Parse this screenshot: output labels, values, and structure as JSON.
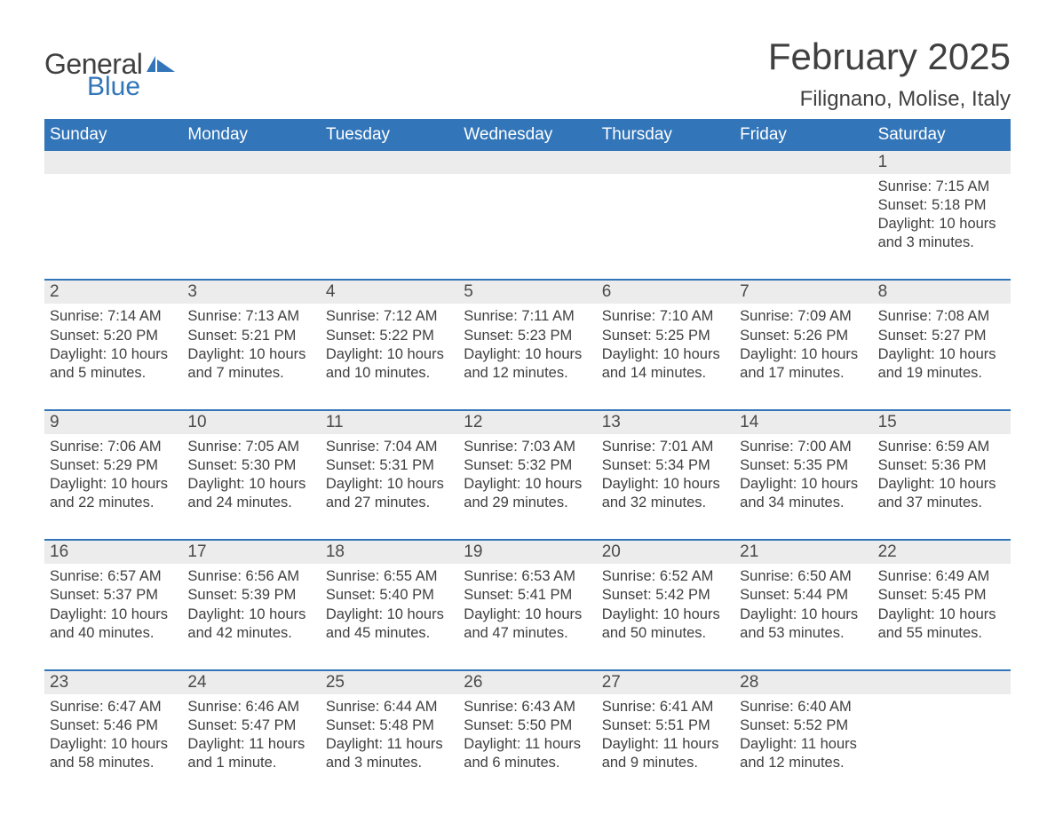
{
  "logo": {
    "general": "General",
    "blue": "Blue"
  },
  "title": "February 2025",
  "location": "Filignano, Molise, Italy",
  "colors": {
    "accent": "#3275b8",
    "row_bg": "#ececec",
    "text": "#404040",
    "white": "#ffffff"
  },
  "weekdays": [
    "Sunday",
    "Monday",
    "Tuesday",
    "Wednesday",
    "Thursday",
    "Friday",
    "Saturday"
  ],
  "weeks": [
    [
      {
        "day": "",
        "sunrise": "",
        "sunset": "",
        "daylight": ""
      },
      {
        "day": "",
        "sunrise": "",
        "sunset": "",
        "daylight": ""
      },
      {
        "day": "",
        "sunrise": "",
        "sunset": "",
        "daylight": ""
      },
      {
        "day": "",
        "sunrise": "",
        "sunset": "",
        "daylight": ""
      },
      {
        "day": "",
        "sunrise": "",
        "sunset": "",
        "daylight": ""
      },
      {
        "day": "",
        "sunrise": "",
        "sunset": "",
        "daylight": ""
      },
      {
        "day": "1",
        "sunrise": "Sunrise: 7:15 AM",
        "sunset": "Sunset: 5:18 PM",
        "daylight": "Daylight: 10 hours and 3 minutes."
      }
    ],
    [
      {
        "day": "2",
        "sunrise": "Sunrise: 7:14 AM",
        "sunset": "Sunset: 5:20 PM",
        "daylight": "Daylight: 10 hours and 5 minutes."
      },
      {
        "day": "3",
        "sunrise": "Sunrise: 7:13 AM",
        "sunset": "Sunset: 5:21 PM",
        "daylight": "Daylight: 10 hours and 7 minutes."
      },
      {
        "day": "4",
        "sunrise": "Sunrise: 7:12 AM",
        "sunset": "Sunset: 5:22 PM",
        "daylight": "Daylight: 10 hours and 10 minutes."
      },
      {
        "day": "5",
        "sunrise": "Sunrise: 7:11 AM",
        "sunset": "Sunset: 5:23 PM",
        "daylight": "Daylight: 10 hours and 12 minutes."
      },
      {
        "day": "6",
        "sunrise": "Sunrise: 7:10 AM",
        "sunset": "Sunset: 5:25 PM",
        "daylight": "Daylight: 10 hours and 14 minutes."
      },
      {
        "day": "7",
        "sunrise": "Sunrise: 7:09 AM",
        "sunset": "Sunset: 5:26 PM",
        "daylight": "Daylight: 10 hours and 17 minutes."
      },
      {
        "day": "8",
        "sunrise": "Sunrise: 7:08 AM",
        "sunset": "Sunset: 5:27 PM",
        "daylight": "Daylight: 10 hours and 19 minutes."
      }
    ],
    [
      {
        "day": "9",
        "sunrise": "Sunrise: 7:06 AM",
        "sunset": "Sunset: 5:29 PM",
        "daylight": "Daylight: 10 hours and 22 minutes."
      },
      {
        "day": "10",
        "sunrise": "Sunrise: 7:05 AM",
        "sunset": "Sunset: 5:30 PM",
        "daylight": "Daylight: 10 hours and 24 minutes."
      },
      {
        "day": "11",
        "sunrise": "Sunrise: 7:04 AM",
        "sunset": "Sunset: 5:31 PM",
        "daylight": "Daylight: 10 hours and 27 minutes."
      },
      {
        "day": "12",
        "sunrise": "Sunrise: 7:03 AM",
        "sunset": "Sunset: 5:32 PM",
        "daylight": "Daylight: 10 hours and 29 minutes."
      },
      {
        "day": "13",
        "sunrise": "Sunrise: 7:01 AM",
        "sunset": "Sunset: 5:34 PM",
        "daylight": "Daylight: 10 hours and 32 minutes."
      },
      {
        "day": "14",
        "sunrise": "Sunrise: 7:00 AM",
        "sunset": "Sunset: 5:35 PM",
        "daylight": "Daylight: 10 hours and 34 minutes."
      },
      {
        "day": "15",
        "sunrise": "Sunrise: 6:59 AM",
        "sunset": "Sunset: 5:36 PM",
        "daylight": "Daylight: 10 hours and 37 minutes."
      }
    ],
    [
      {
        "day": "16",
        "sunrise": "Sunrise: 6:57 AM",
        "sunset": "Sunset: 5:37 PM",
        "daylight": "Daylight: 10 hours and 40 minutes."
      },
      {
        "day": "17",
        "sunrise": "Sunrise: 6:56 AM",
        "sunset": "Sunset: 5:39 PM",
        "daylight": "Daylight: 10 hours and 42 minutes."
      },
      {
        "day": "18",
        "sunrise": "Sunrise: 6:55 AM",
        "sunset": "Sunset: 5:40 PM",
        "daylight": "Daylight: 10 hours and 45 minutes."
      },
      {
        "day": "19",
        "sunrise": "Sunrise: 6:53 AM",
        "sunset": "Sunset: 5:41 PM",
        "daylight": "Daylight: 10 hours and 47 minutes."
      },
      {
        "day": "20",
        "sunrise": "Sunrise: 6:52 AM",
        "sunset": "Sunset: 5:42 PM",
        "daylight": "Daylight: 10 hours and 50 minutes."
      },
      {
        "day": "21",
        "sunrise": "Sunrise: 6:50 AM",
        "sunset": "Sunset: 5:44 PM",
        "daylight": "Daylight: 10 hours and 53 minutes."
      },
      {
        "day": "22",
        "sunrise": "Sunrise: 6:49 AM",
        "sunset": "Sunset: 5:45 PM",
        "daylight": "Daylight: 10 hours and 55 minutes."
      }
    ],
    [
      {
        "day": "23",
        "sunrise": "Sunrise: 6:47 AM",
        "sunset": "Sunset: 5:46 PM",
        "daylight": "Daylight: 10 hours and 58 minutes."
      },
      {
        "day": "24",
        "sunrise": "Sunrise: 6:46 AM",
        "sunset": "Sunset: 5:47 PM",
        "daylight": "Daylight: 11 hours and 1 minute."
      },
      {
        "day": "25",
        "sunrise": "Sunrise: 6:44 AM",
        "sunset": "Sunset: 5:48 PM",
        "daylight": "Daylight: 11 hours and 3 minutes."
      },
      {
        "day": "26",
        "sunrise": "Sunrise: 6:43 AM",
        "sunset": "Sunset: 5:50 PM",
        "daylight": "Daylight: 11 hours and 6 minutes."
      },
      {
        "day": "27",
        "sunrise": "Sunrise: 6:41 AM",
        "sunset": "Sunset: 5:51 PM",
        "daylight": "Daylight: 11 hours and 9 minutes."
      },
      {
        "day": "28",
        "sunrise": "Sunrise: 6:40 AM",
        "sunset": "Sunset: 5:52 PM",
        "daylight": "Daylight: 11 hours and 12 minutes."
      },
      {
        "day": "",
        "sunrise": "",
        "sunset": "",
        "daylight": ""
      }
    ]
  ]
}
